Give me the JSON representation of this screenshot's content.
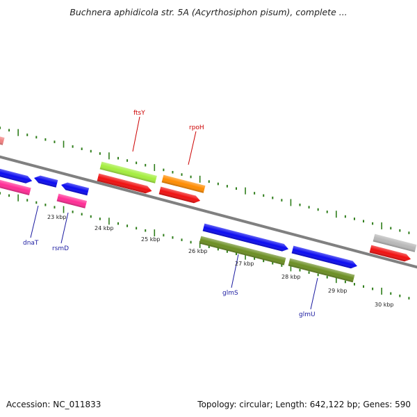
{
  "title": "Buchnera aphidicola str. 5A (Acyrthosiphon pisum), complete ...",
  "footer": {
    "accession": "Accession: NC_011833",
    "summary": "Topology: circular; Length: 642,122 bp; Genes: 590"
  },
  "axis_ticks": [
    "23 kbp",
    "24 kbp",
    "25 kbp",
    "26 kbp",
    "27 kbp",
    "28 kbp",
    "29 kbp",
    "30 kbp"
  ],
  "gene_labels": {
    "ftsY": "ftsY",
    "rpoH": "rpoH",
    "dnaT": "dnaT",
    "rsmD": "rsmD",
    "glmS": "glmS",
    "glmU": "glmU"
  },
  "colors": {
    "backbone": "#808080",
    "tick": "#2e7d1a",
    "blue": "#0a0af0",
    "red": "#f01010",
    "pink": "#ff2c95",
    "lime": "#a4ee3e",
    "orange": "#ff8c00",
    "olive": "#6b8e23",
    "grey": "#b8b8b8",
    "salmon": "#f08080",
    "label_red": "#cc0000",
    "label_blue": "#1a1aa0"
  }
}
